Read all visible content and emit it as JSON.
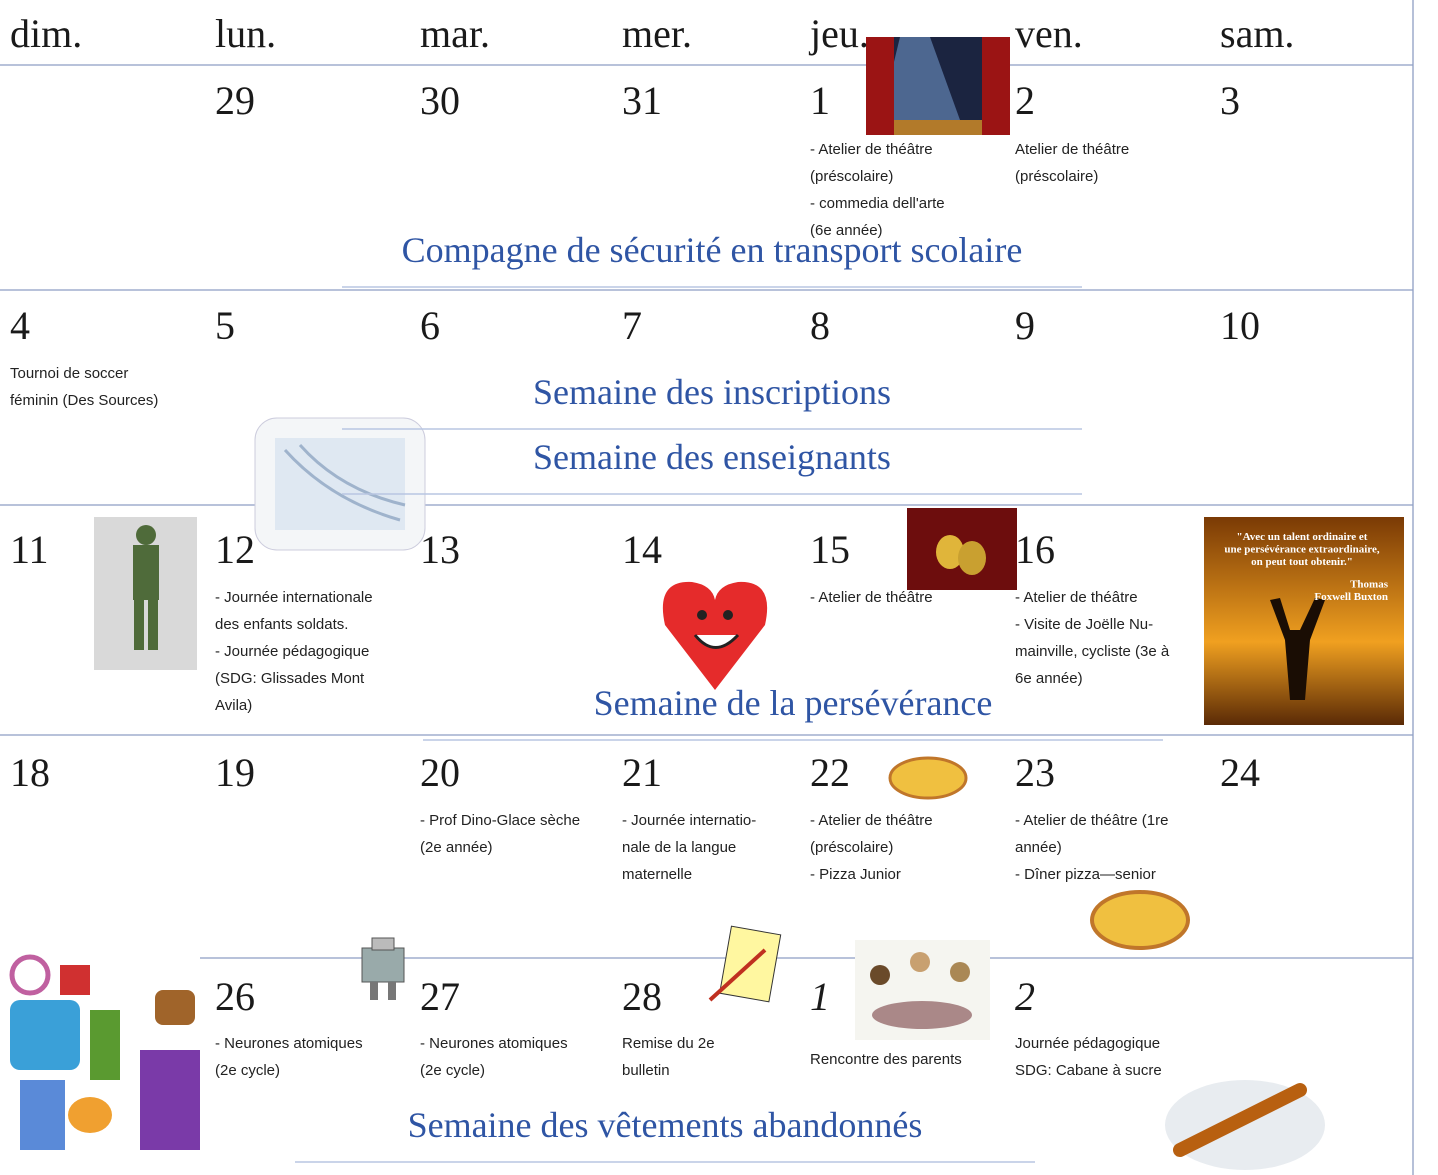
{
  "header": {
    "days": [
      "dim.",
      "lun.",
      "mar.",
      "mer.",
      "jeu.",
      "ven.",
      "sam."
    ]
  },
  "weeks": [
    {
      "cells": [
        null,
        {
          "day": "29"
        },
        {
          "day": "30"
        },
        {
          "day": "31"
        },
        {
          "day": "1",
          "events": [
            "- Atelier de théâtre",
            "(préscolaire)",
            "- commedia dell'arte",
            "(6e année)"
          ]
        },
        {
          "day": "2",
          "events": [
            "Atelier de théâtre",
            "(préscolaire)"
          ]
        },
        {
          "day": "3"
        }
      ],
      "banners": [
        "Compagne de sécurité en transport scolaire"
      ]
    },
    {
      "cells": [
        {
          "day": "4",
          "events": [
            "Tournoi de soccer",
            "féminin (Des Sources)"
          ]
        },
        {
          "day": "5"
        },
        {
          "day": "6"
        },
        {
          "day": "7"
        },
        {
          "day": "8"
        },
        {
          "day": "9"
        },
        {
          "day": "10"
        }
      ],
      "banners": [
        "Semaine des inscriptions",
        "Semaine des enseignants"
      ]
    },
    {
      "cells": [
        {
          "day": "11"
        },
        {
          "day": "12",
          "events": [
            "- Journée internationale",
            "des enfants soldats.",
            "- Journée pédagogique",
            "(SDG: Glissades Mont",
            "Avila)"
          ]
        },
        {
          "day": "13"
        },
        {
          "day": "14"
        },
        {
          "day": "15",
          "events": [
            "- Atelier de théâtre"
          ]
        },
        {
          "day": "16",
          "events": [
            "- Atelier de théâtre",
            "- Visite de Joëlle Nu-",
            "mainville, cycliste (3e à",
            "6e année)"
          ]
        },
        {
          "quote": [
            "\"Avec un talent ordinaire et",
            "une persévérance extraordinaire,",
            "on peut tout obtenir.\"",
            "Thomas",
            "Foxwell Buxton"
          ]
        }
      ],
      "banners": [
        "Semaine de la persévérance"
      ]
    },
    {
      "cells": [
        {
          "day": "18"
        },
        {
          "day": "19"
        },
        {
          "day": "20",
          "events": [
            "- Prof Dino-Glace sèche",
            "(2e année)"
          ]
        },
        {
          "day": "21",
          "events": [
            "- Journée internatio-",
            "nale de la langue",
            "maternelle"
          ]
        },
        {
          "day": "22",
          "events": [
            "- Atelier de théâtre",
            "(préscolaire)",
            "- Pizza Junior"
          ]
        },
        {
          "day": "23",
          "events": [
            "- Atelier de théâtre (1re",
            "année)",
            "- Dîner pizza—senior"
          ]
        },
        {
          "day": "24"
        }
      ],
      "banners": []
    },
    {
      "cells": [
        null,
        {
          "day": "26",
          "events": [
            "- Neurones atomiques",
            "(2e cycle)"
          ]
        },
        {
          "day": "27",
          "events": [
            "- Neurones atomiques",
            "(2e cycle)"
          ]
        },
        {
          "day": "28",
          "events": [
            "Remise  du  2e",
            "bulletin"
          ]
        },
        {
          "day": "1",
          "events": [
            "Rencontre des parents"
          ]
        },
        {
          "day": "2",
          "events": [
            "Journée pédagogique",
            "SDG: Cabane à sucre"
          ]
        },
        null
      ],
      "banners": [
        "Semaine des vêtements abandonnés"
      ]
    }
  ]
}
